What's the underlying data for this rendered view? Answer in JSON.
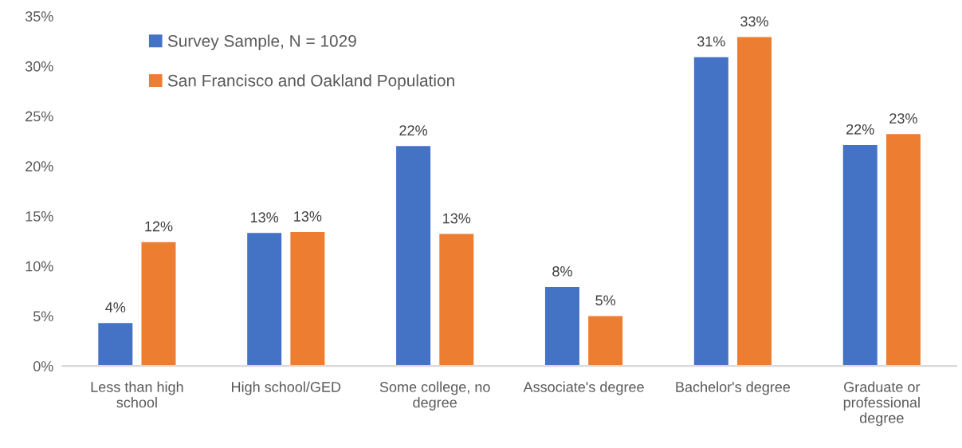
{
  "chart_data": {
    "type": "bar",
    "categories": [
      "Less than high\nschool",
      "High school/GED",
      "Some college, no\ndegree",
      "Associate's degree",
      "Bachelor's degree",
      "Graduate or\nprofessional\ndegree"
    ],
    "series": [
      {
        "name": "Survey Sample, N = 1029",
        "color": "#4472c4",
        "values": [
          4.3,
          13.3,
          22.0,
          7.9,
          30.9,
          22.1
        ],
        "value_labels": [
          "4%",
          "13%",
          "22%",
          "8%",
          "31%",
          "22%"
        ]
      },
      {
        "name": "San Francisco and Oakland Population",
        "color": "#ed7d31",
        "values": [
          12.4,
          13.4,
          13.2,
          5.0,
          32.9,
          23.2
        ],
        "value_labels": [
          "12%",
          "13%",
          "13%",
          "5%",
          "33%",
          "23%"
        ]
      }
    ],
    "ylim": [
      0,
      35
    ],
    "yticks": [
      {
        "value": 0,
        "label": "0%"
      },
      {
        "value": 5,
        "label": "5%"
      },
      {
        "value": 10,
        "label": "10%"
      },
      {
        "value": 15,
        "label": "15%"
      },
      {
        "value": 20,
        "label": "20%"
      },
      {
        "value": 25,
        "label": "25%"
      },
      {
        "value": 30,
        "label": "30%"
      },
      {
        "value": 35,
        "label": "35%"
      }
    ],
    "legend": "top left"
  }
}
